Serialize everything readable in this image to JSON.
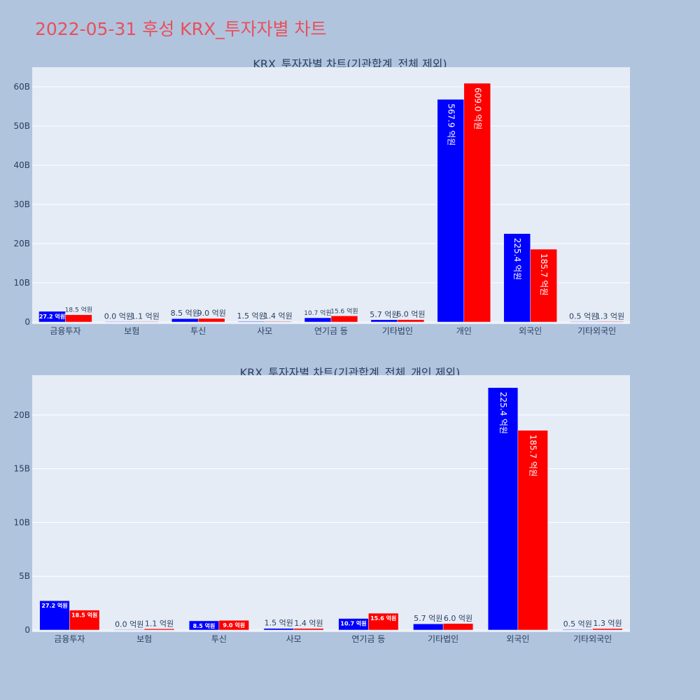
{
  "page_title": "2022-05-31 후성 KRX_투자자별 차트",
  "colors": {
    "buy": "#0000ff",
    "sell": "#ff0000",
    "title": "#e8505b"
  },
  "chart_data": [
    {
      "type": "bar",
      "title": "KRX_투자자별 차트(기관합계_전체 제외)",
      "categories": [
        "금융투자",
        "보험",
        "투신",
        "사모",
        "연기금 등",
        "기타법인",
        "개인",
        "외국인",
        "기타외국인"
      ],
      "series": [
        {
          "values": [
            2.72,
            0.0,
            0.85,
            0.15,
            1.07,
            0.57,
            56.79,
            22.54,
            0.05
          ],
          "labels": [
            "27.2 억원",
            "0.0 억원",
            "8.5 억원",
            "1.5 억원",
            "10.7 억원",
            "5.7 억원",
            "567.9 억원",
            "225.4 억원",
            "0.5 억원"
          ]
        },
        {
          "values": [
            1.85,
            0.11,
            0.9,
            0.14,
            1.56,
            0.6,
            60.9,
            18.57,
            0.13
          ],
          "labels": [
            "18.5 억원",
            "1.1 억원",
            "9.0 억원",
            "1.4 억원",
            "15.6 억원",
            "6.0 억원",
            "609.0 억원",
            "185.7 억원",
            "1.3 억원"
          ]
        }
      ],
      "ylim": [
        0,
        65
      ],
      "yticks": [
        0,
        10,
        20,
        30,
        40,
        50,
        60
      ],
      "ytick_labels": [
        "0",
        "10B",
        "20B",
        "30B",
        "40B",
        "50B",
        "60B"
      ]
    },
    {
      "type": "bar",
      "title": "KRX_투자자별 차트(기관합계_전체_개인 제외)",
      "categories": [
        "금융투자",
        "보험",
        "투신",
        "사모",
        "연기금 등",
        "기타법인",
        "외국인",
        "기타외국인"
      ],
      "series": [
        {
          "values": [
            2.72,
            0.0,
            0.85,
            0.15,
            1.07,
            0.57,
            22.54,
            0.05
          ],
          "labels": [
            "27.2 억원",
            "0.0 억원",
            "8.5 억원",
            "1.5 억원",
            "10.7 억원",
            "5.7 억원",
            "225.4 억원",
            "0.5 억원"
          ]
        },
        {
          "values": [
            1.85,
            0.11,
            0.9,
            0.14,
            1.56,
            0.6,
            18.57,
            0.13
          ],
          "labels": [
            "18.5 억원",
            "1.1 억원",
            "9.0 억원",
            "1.4 억원",
            "15.6 억원",
            "6.0 억원",
            "185.7 억원",
            "1.3 억원"
          ]
        }
      ],
      "ylim": [
        0,
        23.7
      ],
      "yticks": [
        0,
        5,
        10,
        15,
        20
      ],
      "ytick_labels": [
        "0",
        "5B",
        "10B",
        "15B",
        "20B"
      ]
    }
  ]
}
